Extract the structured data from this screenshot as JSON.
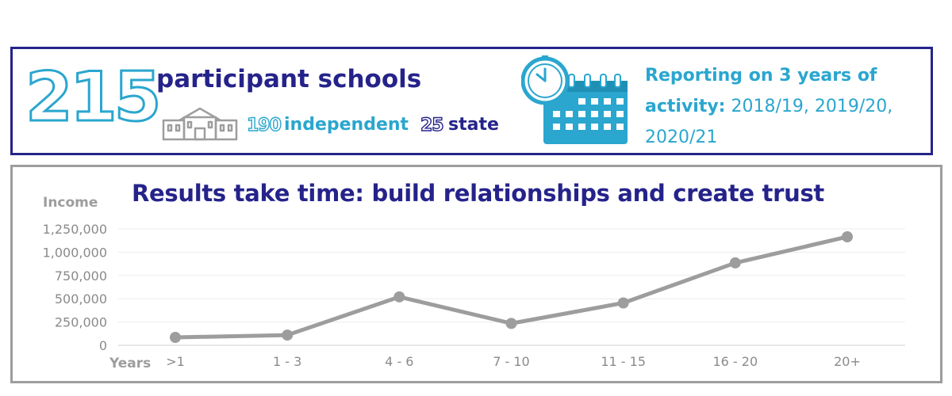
{
  "stats": {
    "total_schools": "215",
    "participants_label": "participant schools",
    "independent_count": "190",
    "independent_label": "independent",
    "state_count": "25",
    "state_label": "state",
    "reporting_bold": "Reporting on 3 years of activity:",
    "reporting_years": " 2018/19, 2019/20, 2020/21",
    "icons": [
      "school-building-icon",
      "clock-icon",
      "calendar-icon"
    ],
    "colors": {
      "navy": "#25238a",
      "teal": "#2aa6cf"
    }
  },
  "chart_data": {
    "type": "line",
    "title": "Results take time: build relationships and create trust",
    "ylabel": "Income",
    "xlabel": "Years",
    "categories": [
      ">1",
      "1 - 3",
      "4 - 6",
      "7 - 10",
      "11 - 15",
      "16 - 20",
      "20+"
    ],
    "series": [
      {
        "values": [
          85000,
          110000,
          520000,
          235000,
          455000,
          885000,
          1165000
        ]
      }
    ],
    "yticks": [
      "0",
      "250,000",
      "500,000",
      "750,000",
      "1,000,000",
      "1,250,000"
    ],
    "ylim": [
      0,
      1250000
    ],
    "grid": true,
    "legend": "none",
    "line_color": "#9d9d9d"
  }
}
